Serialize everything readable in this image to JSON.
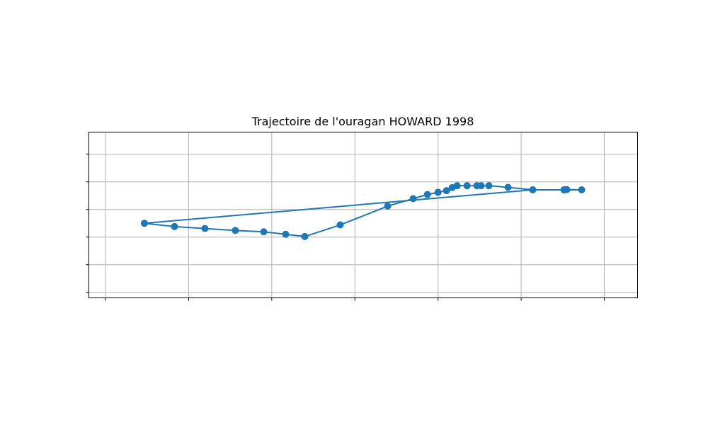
{
  "chart_data": {
    "type": "line",
    "title": "Trajectoire de l'ouragan HOWARD 1998",
    "xlabel": "",
    "ylabel": "",
    "x_ticks_labeled": false,
    "y_ticks_labeled": false,
    "grid": true,
    "xlim": [
      -2.0,
      64.0
    ],
    "ylim": [
      -2.0,
      58.0
    ],
    "x_gridlines": [
      0,
      10,
      20,
      30,
      40,
      50,
      60
    ],
    "y_gridlines": [
      0,
      10,
      20,
      30,
      40,
      50,
      60
    ],
    "color": "#1f77b4",
    "series": [
      {
        "x": [
          4.68,
          8.3,
          11.96,
          15.62,
          19.03,
          21.67,
          23.97,
          28.23,
          33.94,
          37.01,
          38.72,
          40.0,
          41.02,
          41.7,
          42.3,
          43.49,
          44.68,
          45.19,
          46.12,
          48.42,
          51.4,
          55.15,
          55.49,
          57.28,
          55.15,
          51.4,
          4.68
        ],
        "y": [
          25.0,
          23.8,
          23.1,
          22.4,
          21.9,
          21.0,
          20.2,
          24.4,
          31.2,
          33.9,
          35.4,
          36.2,
          36.8,
          37.9,
          38.6,
          38.6,
          38.6,
          38.6,
          38.6,
          38.0,
          37.1,
          37.1,
          37.2,
          37.1,
          37.1,
          37.1,
          25.0
        ]
      }
    ]
  }
}
